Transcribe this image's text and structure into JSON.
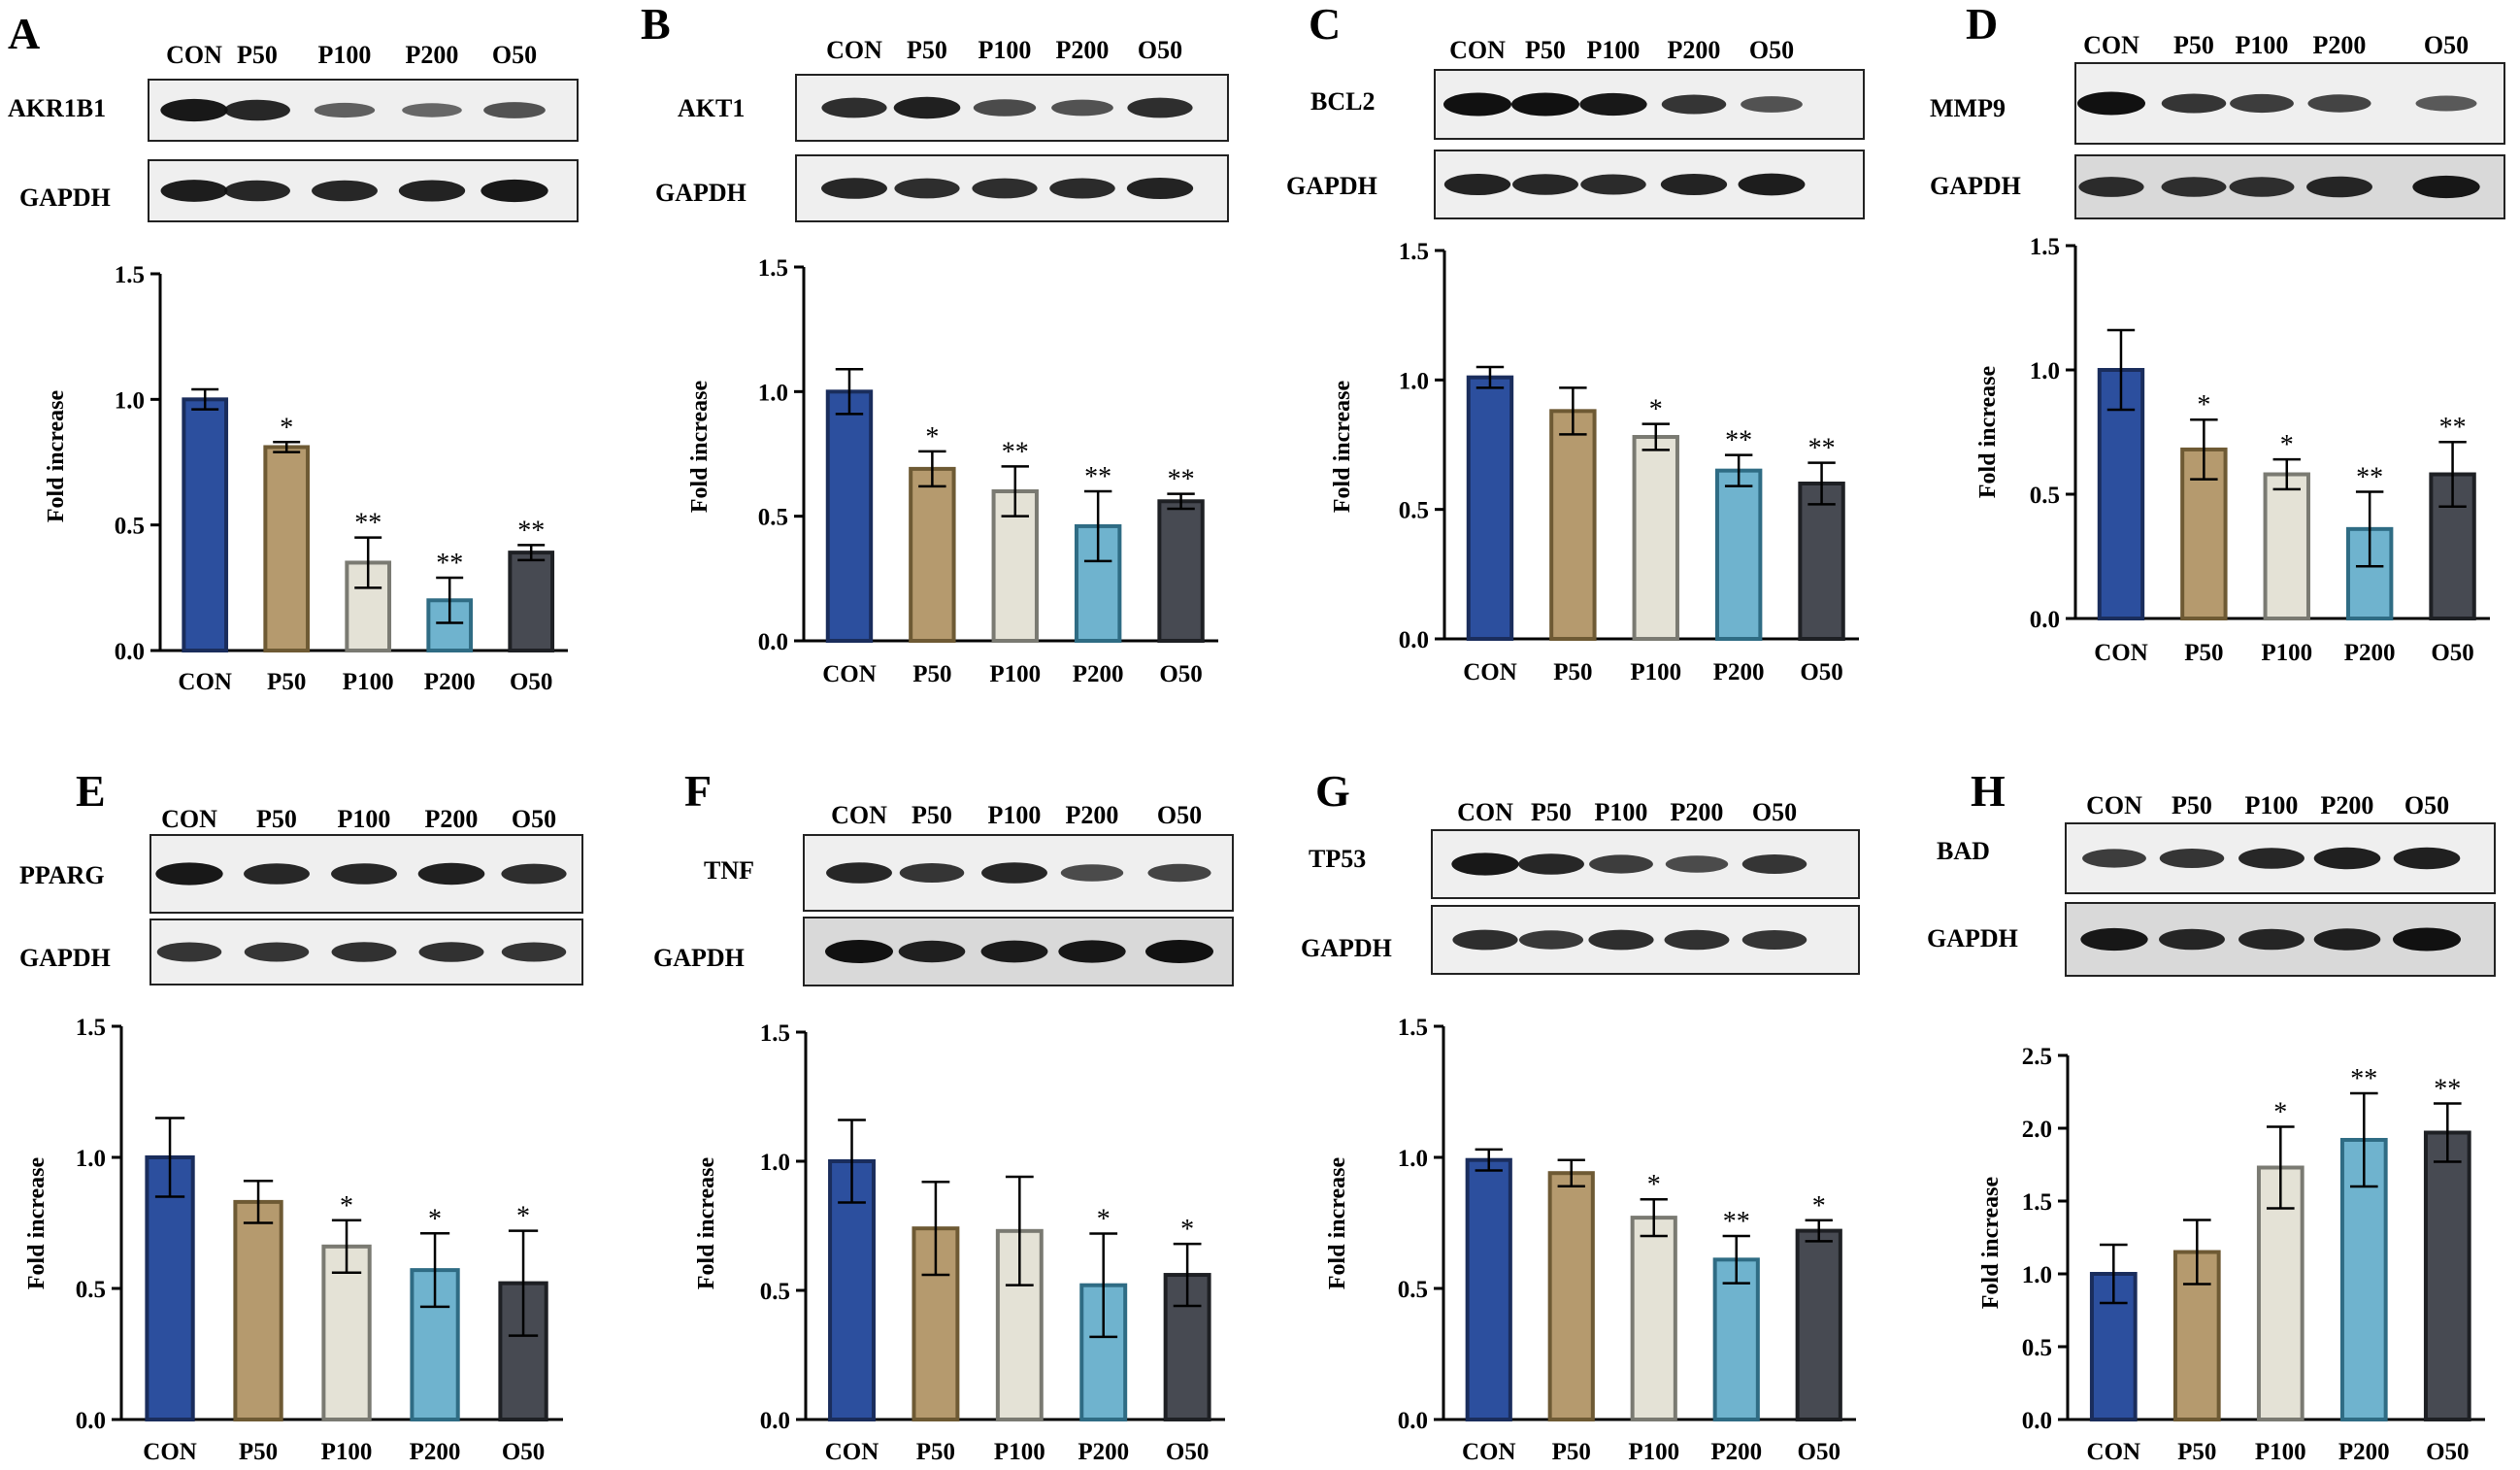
{
  "groups": [
    "CON",
    "P50",
    "P100",
    "P200",
    "O50"
  ],
  "colors": {
    "CON": "#2c4f9e",
    "P50": "#b59a6e",
    "P100": "#e4e2d6",
    "P200": "#6fb3ce",
    "O50": "#474a52",
    "CON_edge": "#1a2d5c",
    "P50_edge": "#6e5a34",
    "P100_edge": "#7a7a72",
    "P200_edge": "#2f6c84",
    "O50_edge": "#1e2024"
  },
  "ylabel": "Fold  increase",
  "housekeeping": "GAPDH",
  "chart_data": [
    {
      "panel": "A",
      "type": "bar",
      "protein": "AKR1B1",
      "categories": [
        "CON",
        "P50",
        "P100",
        "P200",
        "O50"
      ],
      "values": [
        1.0,
        0.81,
        0.35,
        0.2,
        0.39
      ],
      "errors": [
        0.04,
        0.02,
        0.1,
        0.09,
        0.03
      ],
      "sig": [
        "",
        "*",
        "**",
        "**",
        "**"
      ],
      "ylim": [
        0,
        1.5
      ],
      "yticks": [
        "0.0",
        "0.5",
        "1.0",
        "1.5"
      ],
      "xlabel": "",
      "ylabel": "Fold  increase"
    },
    {
      "panel": "B",
      "type": "bar",
      "protein": "AKT1",
      "categories": [
        "CON",
        "P50",
        "P100",
        "P200",
        "O50"
      ],
      "values": [
        1.0,
        0.69,
        0.6,
        0.46,
        0.56
      ],
      "errors": [
        0.09,
        0.07,
        0.1,
        0.14,
        0.03
      ],
      "sig": [
        "",
        "*",
        "**",
        "**",
        "**"
      ],
      "ylim": [
        0,
        1.5
      ],
      "yticks": [
        "0.0",
        "0.5",
        "1.0",
        "1.5"
      ],
      "xlabel": "",
      "ylabel": "Fold  increase"
    },
    {
      "panel": "C",
      "type": "bar",
      "protein": "BCL2",
      "categories": [
        "CON",
        "P50",
        "P100",
        "P200",
        "O50"
      ],
      "values": [
        1.01,
        0.88,
        0.78,
        0.65,
        0.6
      ],
      "errors": [
        0.04,
        0.09,
        0.05,
        0.06,
        0.08
      ],
      "sig": [
        "",
        "",
        "*",
        "**",
        "**"
      ],
      "ylim": [
        0,
        1.5
      ],
      "yticks": [
        "0.0",
        "0.5",
        "1.0",
        "1.5"
      ],
      "xlabel": "",
      "ylabel": "Fold  increase"
    },
    {
      "panel": "D",
      "type": "bar",
      "protein": "MMP9",
      "categories": [
        "CON",
        "P50",
        "P100",
        "P200",
        "O50"
      ],
      "values": [
        1.0,
        0.68,
        0.58,
        0.36,
        0.58
      ],
      "errors": [
        0.16,
        0.12,
        0.06,
        0.15,
        0.13
      ],
      "sig": [
        "",
        "*",
        "*",
        "**",
        "**"
      ],
      "ylim": [
        0,
        1.5
      ],
      "yticks": [
        "0.0",
        "0.5",
        "1.0",
        "1.5"
      ],
      "xlabel": "",
      "ylabel": "Fold  increase"
    },
    {
      "panel": "E",
      "type": "bar",
      "protein": "PPARG",
      "categories": [
        "CON",
        "P50",
        "P100",
        "P200",
        "O50"
      ],
      "values": [
        1.0,
        0.83,
        0.66,
        0.57,
        0.52
      ],
      "errors": [
        0.15,
        0.08,
        0.1,
        0.14,
        0.2
      ],
      "sig": [
        "",
        "",
        "*",
        "*",
        "*"
      ],
      "ylim": [
        0,
        1.5
      ],
      "yticks": [
        "0.0",
        "0.5",
        "1.0",
        "1.5"
      ],
      "xlabel": "",
      "ylabel": "Fold  increase"
    },
    {
      "panel": "F",
      "type": "bar",
      "protein": "TNF",
      "categories": [
        "CON",
        "P50",
        "P100",
        "P200",
        "O50"
      ],
      "values": [
        1.0,
        0.74,
        0.73,
        0.52,
        0.56
      ],
      "errors": [
        0.16,
        0.18,
        0.21,
        0.2,
        0.12
      ],
      "sig": [
        "",
        "",
        "",
        "*",
        "*"
      ],
      "ylim": [
        0,
        1.5
      ],
      "yticks": [
        "0.0",
        "0.5",
        "1.0",
        "1.5"
      ],
      "xlabel": "",
      "ylabel": "Fold  increase"
    },
    {
      "panel": "G",
      "type": "bar",
      "protein": "TP53",
      "categories": [
        "CON",
        "P50",
        "P100",
        "P200",
        "O50"
      ],
      "values": [
        0.99,
        0.94,
        0.77,
        0.61,
        0.72
      ],
      "errors": [
        0.04,
        0.05,
        0.07,
        0.09,
        0.04
      ],
      "sig": [
        "",
        "",
        "*",
        "**",
        "*"
      ],
      "ylim": [
        0,
        1.5
      ],
      "yticks": [
        "0.0",
        "0.5",
        "1.0",
        "1.5"
      ],
      "xlabel": "",
      "ylabel": "Fold  increase"
    },
    {
      "panel": "H",
      "type": "bar",
      "protein": "BAD",
      "categories": [
        "CON",
        "P50",
        "P100",
        "P200",
        "O50"
      ],
      "values": [
        1.0,
        1.15,
        1.73,
        1.92,
        1.97
      ],
      "errors": [
        0.2,
        0.22,
        0.28,
        0.32,
        0.2
      ],
      "sig": [
        "",
        "",
        "*",
        "**",
        "**"
      ],
      "ylim": [
        0,
        2.5
      ],
      "yticks": [
        "0.0",
        "0.5",
        "1.0",
        "1.5",
        "2.0",
        "2.5"
      ],
      "xlabel": "",
      "ylabel": "Fold  increase"
    }
  ],
  "blots": {
    "A": {
      "target": [
        0.95,
        0.85,
        0.45,
        0.4,
        0.55
      ],
      "gapdh": [
        0.92,
        0.85,
        0.85,
        0.88,
        0.95
      ]
    },
    "B": {
      "target": [
        0.8,
        0.9,
        0.6,
        0.55,
        0.8
      ],
      "gapdh": [
        0.85,
        0.8,
        0.8,
        0.82,
        0.88
      ]
    },
    "C": {
      "target": [
        1.0,
        1.0,
        0.95,
        0.75,
        0.55
      ],
      "gapdh": [
        0.88,
        0.85,
        0.82,
        0.88,
        0.92
      ]
    },
    "D": {
      "target": [
        1.0,
        0.75,
        0.7,
        0.65,
        0.5
      ],
      "gapdh": [
        0.8,
        0.78,
        0.78,
        0.85,
        0.95
      ]
    },
    "E": {
      "target": [
        0.95,
        0.85,
        0.85,
        0.9,
        0.8
      ],
      "gapdh": [
        0.75,
        0.75,
        0.78,
        0.78,
        0.75
      ]
    },
    "F": {
      "target": [
        0.85,
        0.75,
        0.85,
        0.6,
        0.65
      ],
      "gapdh": [
        1.0,
        0.9,
        0.92,
        0.95,
        1.0
      ]
    },
    "G": {
      "target": [
        0.95,
        0.85,
        0.7,
        0.6,
        0.75
      ],
      "gapdh": [
        0.8,
        0.72,
        0.8,
        0.78,
        0.75
      ]
    },
    "H": {
      "target": [
        0.7,
        0.75,
        0.85,
        0.9,
        0.9
      ],
      "gapdh": [
        0.95,
        0.85,
        0.85,
        0.9,
        1.0
      ]
    }
  }
}
